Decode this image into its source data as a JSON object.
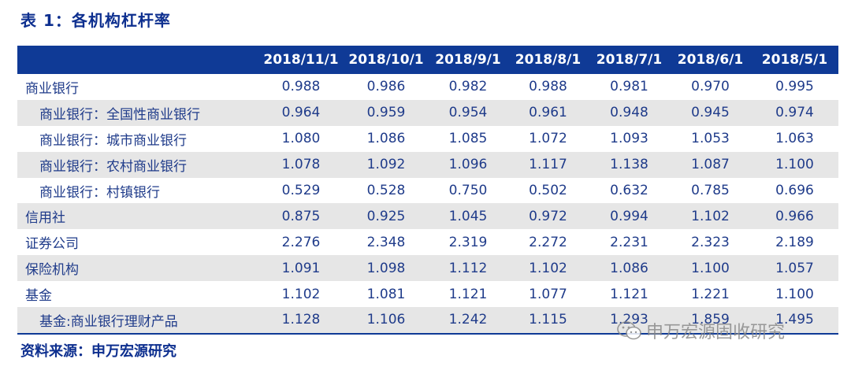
{
  "title": "表 1：各机构杠杆率",
  "table": {
    "columns": [
      "2018/11/1",
      "2018/10/1",
      "2018/9/1",
      "2018/8/1",
      "2018/7/1",
      "2018/6/1",
      "2018/5/1"
    ],
    "rows": [
      {
        "label": "商业银行",
        "sub": false,
        "values": [
          "0.988",
          "0.986",
          "0.982",
          "0.988",
          "0.981",
          "0.970",
          "0.995"
        ]
      },
      {
        "label": "商业银行：全国性商业银行",
        "sub": true,
        "values": [
          "0.964",
          "0.959",
          "0.954",
          "0.961",
          "0.948",
          "0.945",
          "0.974"
        ]
      },
      {
        "label": "商业银行：城市商业银行",
        "sub": true,
        "values": [
          "1.080",
          "1.086",
          "1.085",
          "1.072",
          "1.093",
          "1.053",
          "1.063"
        ]
      },
      {
        "label": "商业银行：农村商业银行",
        "sub": true,
        "values": [
          "1.078",
          "1.092",
          "1.096",
          "1.117",
          "1.138",
          "1.087",
          "1.100"
        ]
      },
      {
        "label": "商业银行：村镇银行",
        "sub": true,
        "values": [
          "0.529",
          "0.528",
          "0.750",
          "0.502",
          "0.632",
          "0.785",
          "0.696"
        ]
      },
      {
        "label": "信用社",
        "sub": false,
        "values": [
          "0.875",
          "0.925",
          "1.045",
          "0.972",
          "0.994",
          "1.102",
          "0.966"
        ]
      },
      {
        "label": "证券公司",
        "sub": false,
        "values": [
          "2.276",
          "2.348",
          "2.319",
          "2.272",
          "2.231",
          "2.323",
          "2.189"
        ]
      },
      {
        "label": "保险机构",
        "sub": false,
        "values": [
          "1.091",
          "1.098",
          "1.112",
          "1.102",
          "1.086",
          "1.100",
          "1.057"
        ]
      },
      {
        "label": "基金",
        "sub": false,
        "values": [
          "1.102",
          "1.081",
          "1.121",
          "1.077",
          "1.121",
          "1.221",
          "1.100"
        ]
      },
      {
        "label": "基金:商业银行理财产品",
        "sub": true,
        "values": [
          "1.128",
          "1.106",
          "1.242",
          "1.115",
          "1.293",
          "1.859",
          "1.495"
        ]
      }
    ]
  },
  "source": "资料来源：申万宏源研究",
  "watermark": {
    "text": "申万宏源固收研究",
    "icon": "wechat-icon"
  }
}
